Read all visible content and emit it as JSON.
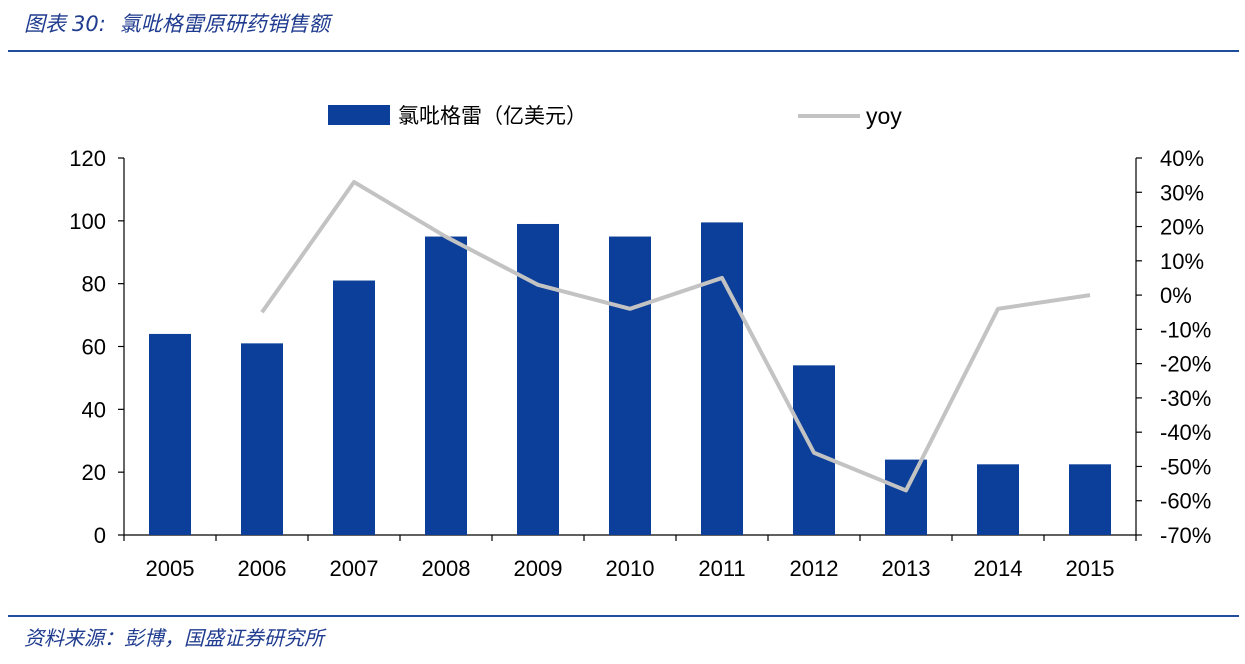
{
  "header": {
    "label": "图表",
    "number": "30:",
    "title": "氯吡格雷原研药销售额"
  },
  "footer": {
    "source": "资料来源：彭博，国盛证券研究所"
  },
  "colors": {
    "bar": "#0b3f99",
    "line": "#c3c3c3",
    "rule": "#1f4e9c",
    "header_text": "#1f3b8f"
  },
  "chart_data": {
    "type": "bar",
    "categories": [
      "2005",
      "2006",
      "2007",
      "2008",
      "2009",
      "2010",
      "2011",
      "2012",
      "2013",
      "2014",
      "2015"
    ],
    "series": [
      {
        "name": "氯吡格雷（亿美元）",
        "type": "bar",
        "axis": "left",
        "values": [
          64,
          61,
          81,
          95,
          99,
          95,
          99.5,
          54,
          24,
          22.5,
          22.5
        ]
      },
      {
        "name": "yoy",
        "type": "line",
        "axis": "right",
        "values": [
          null,
          -5,
          33,
          17,
          3,
          -4,
          5,
          -46,
          -57,
          -4,
          0
        ]
      }
    ],
    "ylim_left": [
      0,
      120
    ],
    "yticks_left": [
      0,
      20,
      40,
      60,
      80,
      100,
      120
    ],
    "ylim_right": [
      -70,
      40
    ],
    "yticks_right": [
      "40%",
      "30%",
      "20%",
      "10%",
      "0%",
      "-10%",
      "-20%",
      "-30%",
      "-40%",
      "-50%",
      "-60%",
      "-70%"
    ],
    "yticks_right_values": [
      40,
      30,
      20,
      10,
      0,
      -10,
      -20,
      -30,
      -40,
      -50,
      -60,
      -70
    ],
    "legend_position": "top",
    "grid": false
  }
}
